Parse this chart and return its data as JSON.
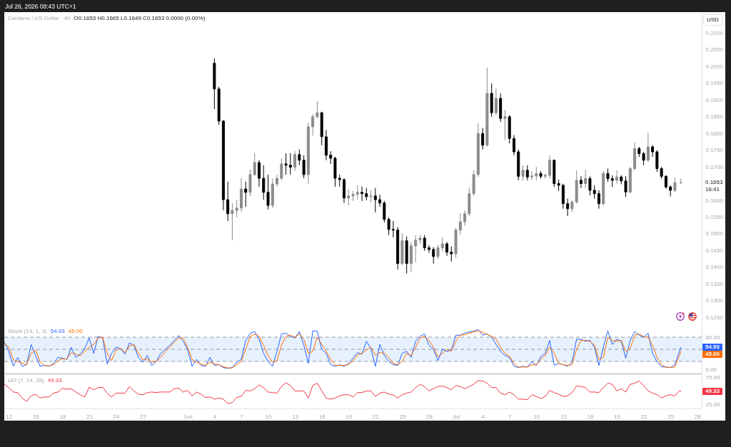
{
  "chart_data": [
    {
      "type": "candlestick",
      "title": "Cardano / US Dollar · 4h",
      "subtitle": "O0.1653 H0.1665 L0.1649 C0.1653 0.0000 (0.00%)",
      "ylabel": "USD",
      "x": [
        "2026-06-04",
        "2026-06-04T12:00",
        "2026-06-05",
        "2026-06-05T12:00",
        "2026-06-06",
        "2026-06-06T12:00",
        "2026-06-07",
        "2026-06-07T12:00",
        "2026-06-08",
        "2026-06-08T12:00",
        "2026-06-09",
        "2026-06-09T12:00",
        "2026-06-10",
        "2026-06-10T12:00",
        "2026-06-11",
        "2026-06-11T12:00",
        "2026-06-12",
        "2026-06-12T12:00",
        "2026-06-13",
        "2026-06-13T12:00",
        "2026-06-14",
        "2026-06-14T12:00",
        "2026-06-15",
        "2026-06-15T12:00",
        "2026-06-16",
        "2026-06-16T12:00",
        "2026-06-17",
        "2026-06-17T12:00",
        "2026-06-18",
        "2026-06-18T12:00",
        "2026-06-19",
        "2026-06-19T12:00",
        "2026-06-20",
        "2026-06-20T12:00",
        "2026-06-21",
        "2026-06-21T12:00",
        "2026-06-22",
        "2026-06-22T12:00",
        "2026-06-23",
        "2026-06-23T12:00",
        "2026-06-24",
        "2026-06-24T12:00",
        "2026-06-25",
        "2026-06-25T12:00",
        "2026-06-26",
        "2026-06-26T12:00",
        "2026-06-27",
        "2026-06-27T12:00",
        "2026-06-28",
        "2026-06-28T12:00",
        "2026-06-29",
        "2026-06-29T12:00",
        "2026-06-30",
        "2026-06-30T12:00",
        "2026-07-01",
        "2026-07-01T12:00",
        "2026-07-02",
        "2026-07-02T12:00",
        "2026-07-03",
        "2026-07-03T12:00",
        "2026-07-04",
        "2026-07-04T12:00",
        "2026-07-05",
        "2026-07-05T12:00",
        "2026-07-06",
        "2026-07-06T12:00",
        "2026-07-07",
        "2026-07-07T12:00",
        "2026-07-08",
        "2026-07-08T12:00",
        "2026-07-09",
        "2026-07-09T12:00",
        "2026-07-10",
        "2026-07-10T12:00",
        "2026-07-11",
        "2026-07-11T12:00",
        "2026-07-12",
        "2026-07-12T12:00",
        "2026-07-13",
        "2026-07-13T12:00",
        "2026-07-14",
        "2026-07-14T12:00",
        "2026-07-15",
        "2026-07-15T12:00",
        "2026-07-16",
        "2026-07-16T12:00",
        "2026-07-17",
        "2026-07-17T12:00",
        "2026-07-18",
        "2026-07-18T12:00",
        "2026-07-19",
        "2026-07-19T12:00",
        "2026-07-20",
        "2026-07-20T12:00",
        "2026-07-21",
        "2026-07-21T12:00",
        "2026-07-22",
        "2026-07-22T12:00",
        "2026-07-23",
        "2026-07-23T12:00",
        "2026-07-24",
        "2026-07-24T12:00",
        "2026-07-25",
        "2026-07-25T12:00",
        "2026-07-26T04:00"
      ],
      "ohlc": [
        [
          0.201,
          0.2025,
          0.1873,
          0.1933
        ],
        [
          0.1933,
          0.194,
          0.1826,
          0.1837
        ],
        [
          0.1837,
          0.184,
          0.157,
          0.1602
        ],
        [
          0.1602,
          0.1656,
          0.1538,
          0.156
        ],
        [
          0.156,
          0.1592,
          0.1481,
          0.157
        ],
        [
          0.157,
          0.1602,
          0.1549,
          0.1577
        ],
        [
          0.1577,
          0.1666,
          0.1566,
          0.1634
        ],
        [
          0.1634,
          0.1656,
          0.1581,
          0.1624
        ],
        [
          0.1624,
          0.1692,
          0.1613,
          0.1677
        ],
        [
          0.1677,
          0.1741,
          0.1673,
          0.1713
        ],
        [
          0.1713,
          0.172,
          0.1641,
          0.1666
        ],
        [
          0.1666,
          0.1705,
          0.1602,
          0.1624
        ],
        [
          0.1624,
          0.1677,
          0.1573,
          0.1585
        ],
        [
          0.1585,
          0.1666,
          0.1577,
          0.1649
        ],
        [
          0.1649,
          0.1677,
          0.1641,
          0.1666
        ],
        [
          0.1666,
          0.1726,
          0.166,
          0.1709
        ],
        [
          0.1709,
          0.1741,
          0.1677,
          0.1705
        ],
        [
          0.1705,
          0.1741,
          0.1677,
          0.1699
        ],
        [
          0.1699,
          0.1747,
          0.1688,
          0.1737
        ],
        [
          0.1737,
          0.1752,
          0.1705,
          0.172
        ],
        [
          0.172,
          0.1735,
          0.1666,
          0.1677
        ],
        [
          0.1677,
          0.1832,
          0.1649,
          0.182
        ],
        [
          0.182,
          0.1858,
          0.1794,
          0.185
        ],
        [
          0.185,
          0.1897,
          0.1845,
          0.1862
        ],
        [
          0.1862,
          0.1865,
          0.1765,
          0.179
        ],
        [
          0.179,
          0.1811,
          0.172,
          0.1735
        ],
        [
          0.1735,
          0.1747,
          0.1709,
          0.1726
        ],
        [
          0.1726,
          0.173,
          0.1641,
          0.1666
        ],
        [
          0.1666,
          0.1677,
          0.1641,
          0.1662
        ],
        [
          0.1662,
          0.1666,
          0.1592,
          0.1607
        ],
        [
          0.1607,
          0.1634,
          0.1585,
          0.1613
        ],
        [
          0.1613,
          0.1628,
          0.1598,
          0.1618
        ],
        [
          0.1618,
          0.1645,
          0.1602,
          0.1624
        ],
        [
          0.1624,
          0.1641,
          0.1598,
          0.162
        ],
        [
          0.162,
          0.1637,
          0.16,
          0.1611
        ],
        [
          0.1611,
          0.163,
          0.1594,
          0.1613
        ],
        [
          0.1613,
          0.1637,
          0.1564,
          0.1602
        ],
        [
          0.1602,
          0.1617,
          0.1581,
          0.1592
        ],
        [
          0.1592,
          0.1598,
          0.1534,
          0.1543
        ],
        [
          0.1543,
          0.1549,
          0.1496,
          0.1513
        ],
        [
          0.1513,
          0.1538,
          0.1489,
          0.1511
        ],
        [
          0.1511,
          0.152,
          0.1393,
          0.1411
        ],
        [
          0.1411,
          0.1502,
          0.1406,
          0.1479
        ],
        [
          0.1479,
          0.1492,
          0.1381,
          0.1411
        ],
        [
          0.1411,
          0.1475,
          0.1385,
          0.1464
        ],
        [
          0.1464,
          0.1496,
          0.1415,
          0.1481
        ],
        [
          0.1481,
          0.1496,
          0.147,
          0.1487
        ],
        [
          0.1487,
          0.1496,
          0.1449,
          0.1458
        ],
        [
          0.1458,
          0.1466,
          0.1443,
          0.1453
        ],
        [
          0.1453,
          0.146,
          0.1411,
          0.1432
        ],
        [
          0.1432,
          0.1466,
          0.1425,
          0.1458
        ],
        [
          0.1458,
          0.149,
          0.1447,
          0.147
        ],
        [
          0.147,
          0.1475,
          0.1434,
          0.1445
        ],
        [
          0.1445,
          0.1462,
          0.1417,
          0.144
        ],
        [
          0.144,
          0.1517,
          0.1428,
          0.1511
        ],
        [
          0.1511,
          0.1562,
          0.1498,
          0.1536
        ],
        [
          0.1536,
          0.157,
          0.1524,
          0.156
        ],
        [
          0.156,
          0.1637,
          0.1553,
          0.162
        ],
        [
          0.162,
          0.169,
          0.1613,
          0.1677
        ],
        [
          0.1677,
          0.183,
          0.167,
          0.18
        ],
        [
          0.18,
          0.1817,
          0.1752,
          0.1765
        ],
        [
          0.1765,
          0.1997,
          0.176,
          0.192
        ],
        [
          0.192,
          0.195,
          0.185,
          0.1862
        ],
        [
          0.1862,
          0.1935,
          0.1855,
          0.1905
        ],
        [
          0.1905,
          0.192,
          0.1835,
          0.1845
        ],
        [
          0.1845,
          0.187,
          0.178,
          0.185
        ],
        [
          0.185,
          0.1855,
          0.177,
          0.1785
        ],
        [
          0.1785,
          0.1795,
          0.1735,
          0.1745
        ],
        [
          0.1745,
          0.1752,
          0.166,
          0.1672
        ],
        [
          0.1672,
          0.1705,
          0.166,
          0.169
        ],
        [
          0.169,
          0.1705,
          0.166,
          0.167
        ],
        [
          0.167,
          0.1688,
          0.166,
          0.1673
        ],
        [
          0.1673,
          0.17,
          0.166,
          0.168
        ],
        [
          0.168,
          0.1688,
          0.1665,
          0.1672
        ],
        [
          0.1672,
          0.168,
          0.1665,
          0.1675
        ],
        [
          0.1675,
          0.1735,
          0.1665,
          0.172
        ],
        [
          0.172,
          0.1722,
          0.164,
          0.165
        ],
        [
          0.165,
          0.1662,
          0.1628,
          0.1645
        ],
        [
          0.1645,
          0.165,
          0.1575,
          0.159
        ],
        [
          0.159,
          0.1605,
          0.1553,
          0.1575
        ],
        [
          0.1575,
          0.16,
          0.1565,
          0.1595
        ],
        [
          0.1595,
          0.169,
          0.159,
          0.166
        ],
        [
          0.166,
          0.1672,
          0.1637,
          0.165
        ],
        [
          0.165,
          0.1692,
          0.1637,
          0.1665
        ],
        [
          0.1665,
          0.1672,
          0.1615,
          0.163
        ],
        [
          0.163,
          0.1645,
          0.1605,
          0.162
        ],
        [
          0.162,
          0.163,
          0.1575,
          0.159
        ],
        [
          0.159,
          0.1688,
          0.1585,
          0.168
        ],
        [
          0.168,
          0.1695,
          0.1655,
          0.1665
        ],
        [
          0.1665,
          0.1675,
          0.164,
          0.166
        ],
        [
          0.166,
          0.169,
          0.165,
          0.167
        ],
        [
          0.167,
          0.1675,
          0.1648,
          0.1658
        ],
        [
          0.1658,
          0.1672,
          0.161,
          0.1625
        ],
        [
          0.1625,
          0.17,
          0.162,
          0.1695
        ],
        [
          0.1695,
          0.1773,
          0.169,
          0.1755
        ],
        [
          0.1755,
          0.176,
          0.173,
          0.174
        ],
        [
          0.174,
          0.1745,
          0.1705,
          0.172
        ],
        [
          0.172,
          0.1802,
          0.1715,
          0.176
        ],
        [
          0.176,
          0.1765,
          0.173,
          0.1745
        ],
        [
          0.1745,
          0.175,
          0.1685,
          0.1695
        ],
        [
          0.1695,
          0.17,
          0.1665,
          0.1672
        ],
        [
          0.1672,
          0.1675,
          0.1635,
          0.164
        ],
        [
          0.164,
          0.1645,
          0.1612,
          0.163
        ],
        [
          0.163,
          0.1668,
          0.1625,
          0.1653
        ],
        [
          0.1653,
          0.1665,
          0.1649,
          0.1653
        ]
      ],
      "colors": [
        "#000000",
        "#000000",
        "#000000",
        "#000000",
        "#8c8c8c",
        "#8c8c8c",
        "#8c8c8c",
        "#000000",
        "#8c8c8c",
        "#8c8c8c",
        "#000000",
        "#000000",
        "#000000",
        "#8c8c8c",
        "#8c8c8c",
        "#8c8c8c",
        "#000000",
        "#000000",
        "#8c8c8c",
        "#000000",
        "#000000",
        "#8c8c8c",
        "#8c8c8c",
        "#8c8c8c",
        "#000000",
        "#000000",
        "#000000",
        "#000000",
        "#000000",
        "#000000",
        "#8c8c8c",
        "#8c8c8c",
        "#8c8c8c",
        "#000000",
        "#000000",
        "#8c8c8c",
        "#000000",
        "#000000",
        "#000000",
        "#000000",
        "#000000",
        "#000000",
        "#8c8c8c",
        "#000000",
        "#8c8c8c",
        "#8c8c8c",
        "#8c8c8c",
        "#000000",
        "#000000",
        "#000000",
        "#8c8c8c",
        "#8c8c8c",
        "#000000",
        "#000000",
        "#8c8c8c",
        "#8c8c8c",
        "#8c8c8c",
        "#8c8c8c",
        "#8c8c8c",
        "#8c8c8c",
        "#000000",
        "#8c8c8c",
        "#000000",
        "#8c8c8c",
        "#000000",
        "#8c8c8c",
        "#000000",
        "#000000",
        "#000000",
        "#8c8c8c",
        "#000000",
        "#8c8c8c",
        "#8c8c8c",
        "#000000",
        "#8c8c8c",
        "#8c8c8c",
        "#000000",
        "#000000",
        "#000000",
        "#000000",
        "#8c8c8c",
        "#8c8c8c",
        "#000000",
        "#8c8c8c",
        "#000000",
        "#000000",
        "#000000",
        "#8c8c8c",
        "#000000",
        "#000000",
        "#8c8c8c",
        "#000000",
        "#000000",
        "#8c8c8c",
        "#8c8c8c",
        "#000000",
        "#000000",
        "#8c8c8c",
        "#000000",
        "#000000",
        "#000000",
        "#000000",
        "#000000",
        "#8c8c8c",
        "#8c8c8c"
      ],
      "xlim": [
        "2026-05-11T12:00",
        "2026-07-28T12:00"
      ],
      "ylim": [
        0.1229,
        0.2163
      ],
      "yticks": [
        {
          "value": 0.125,
          "label": "0.1250"
        },
        {
          "value": 0.13,
          "label": "0.1300"
        },
        {
          "value": 0.135,
          "label": "0.1350"
        },
        {
          "value": 0.14,
          "label": "0.1400"
        },
        {
          "value": 0.145,
          "label": "0.1450"
        },
        {
          "value": 0.15,
          "label": "0.1500"
        },
        {
          "value": 0.155,
          "label": "0.1550"
        },
        {
          "value": 0.16,
          "label": "0.1600"
        },
        {
          "value": 0.17,
          "label": "0.1700"
        },
        {
          "value": 0.175,
          "label": "0.1750"
        },
        {
          "value": 0.18,
          "label": "0.1800"
        },
        {
          "value": 0.185,
          "label": "0.1850"
        },
        {
          "value": 0.19,
          "label": "0.1900"
        },
        {
          "value": 0.195,
          "label": "0.1950"
        },
        {
          "value": 0.2,
          "label": "0.2000"
        },
        {
          "value": 0.205,
          "label": "0.2050"
        },
        {
          "value": 0.21,
          "label": "0.2100"
        }
      ],
      "tick_labels": "y",
      "annotations": [
        "Jul 26, 2026 08:43 UTC+1",
        "0.1653",
        "16:41"
      ]
    },
    {
      "type": "line",
      "title": "Stoch (14, 1, 3)",
      "x": [
        "2026-05-11T12:00",
        "2026-05-12",
        "2026-05-12T12:00",
        "2026-05-13",
        "2026-05-13T12:00",
        "2026-05-14",
        "2026-05-14T12:00",
        "2026-05-15",
        "2026-05-15T12:00",
        "2026-05-16",
        "2026-05-16T12:00",
        "2026-05-17",
        "2026-05-17T12:00",
        "2026-05-18",
        "2026-05-18T12:00",
        "2026-05-19",
        "2026-05-19T12:00",
        "2026-05-20",
        "2026-05-20T12:00",
        "2026-05-21",
        "2026-05-21T12:00",
        "2026-05-22",
        "2026-05-22T12:00",
        "2026-05-23",
        "2026-05-23T12:00",
        "2026-05-24",
        "2026-05-24T12:00",
        "2026-05-25",
        "2026-05-25T12:00",
        "2026-05-26",
        "2026-05-26T12:00",
        "2026-05-27",
        "2026-05-27T12:00",
        "2026-05-28",
        "2026-05-28T12:00",
        "2026-05-29",
        "2026-05-29T12:00",
        "2026-05-30",
        "2026-05-30T12:00",
        "2026-05-31",
        "2026-05-31T12:00",
        "2026-06-01",
        "2026-06-01T12:00",
        "2026-06-02",
        "2026-06-02T12:00",
        "2026-06-03",
        "2026-06-03T12:00",
        "2026-06-04",
        "2026-06-04T12:00",
        "2026-06-05",
        "2026-06-05T12:00",
        "2026-06-06",
        "2026-06-06T12:00",
        "2026-06-07",
        "2026-06-07T12:00",
        "2026-06-08",
        "2026-06-08T12:00",
        "2026-06-09",
        "2026-06-09T12:00",
        "2026-06-10",
        "2026-06-10T12:00",
        "2026-06-11",
        "2026-06-11T12:00",
        "2026-06-12",
        "2026-06-12T12:00",
        "2026-06-13",
        "2026-06-13T12:00",
        "2026-06-14",
        "2026-06-14T12:00",
        "2026-06-15",
        "2026-06-15T12:00",
        "2026-06-16",
        "2026-06-16T12:00",
        "2026-06-17",
        "2026-06-17T12:00",
        "2026-06-18",
        "2026-06-18T12:00",
        "2026-06-19",
        "2026-06-19T12:00",
        "2026-06-20",
        "2026-06-20T12:00",
        "2026-06-21",
        "2026-06-21T12:00",
        "2026-06-22",
        "2026-06-22T12:00",
        "2026-06-23",
        "2026-06-23T12:00",
        "2026-06-24",
        "2026-06-24T12:00",
        "2026-06-25",
        "2026-06-25T12:00",
        "2026-06-26",
        "2026-06-26T12:00",
        "2026-06-27",
        "2026-06-27T12:00",
        "2026-06-28",
        "2026-06-28T12:00",
        "2026-06-29",
        "2026-06-29T12:00",
        "2026-06-30",
        "2026-06-30T12:00",
        "2026-07-01",
        "2026-07-01T12:00",
        "2026-07-02",
        "2026-07-02T12:00",
        "2026-07-03",
        "2026-07-03T12:00",
        "2026-07-04",
        "2026-07-04T12:00",
        "2026-07-05",
        "2026-07-05T12:00",
        "2026-07-06",
        "2026-07-06T12:00",
        "2026-07-07",
        "2026-07-07T12:00",
        "2026-07-08",
        "2026-07-08T12:00",
        "2026-07-09",
        "2026-07-09T12:00",
        "2026-07-10",
        "2026-07-10T12:00",
        "2026-07-11",
        "2026-07-11T12:00",
        "2026-07-12",
        "2026-07-12T12:00",
        "2026-07-13",
        "2026-07-13T12:00",
        "2026-07-14",
        "2026-07-14T12:00",
        "2026-07-15",
        "2026-07-15T12:00",
        "2026-07-16",
        "2026-07-16T12:00",
        "2026-07-17",
        "2026-07-17T12:00",
        "2026-07-18",
        "2026-07-18T12:00",
        "2026-07-19",
        "2026-07-19T12:00",
        "2026-07-20",
        "2026-07-20T12:00",
        "2026-07-21",
        "2026-07-21T12:00",
        "2026-07-22",
        "2026-07-22T12:00",
        "2026-07-23",
        "2026-07-23T12:00",
        "2026-07-24",
        "2026-07-24T12:00",
        "2026-07-25",
        "2026-07-25T12:00",
        "2026-07-26",
        "2026-07-26T04:00"
      ],
      "series": [
        {
          "color": "#2962ff",
          "values": [
            68,
            45,
            8,
            30,
            8,
            12,
            62,
            35,
            8,
            10,
            8,
            15,
            30,
            28,
            25,
            55,
            30,
            38,
            52,
            78,
            40,
            82,
            78,
            14,
            40,
            55,
            52,
            38,
            66,
            60,
            30,
            18,
            35,
            10,
            20,
            40,
            50,
            60,
            72,
            84,
            70,
            50,
            8,
            25,
            10,
            8,
            30,
            10,
            12,
            5,
            3,
            5,
            18,
            25,
            72,
            90,
            94,
            75,
            40,
            20,
            8,
            45,
            88,
            90,
            82,
            78,
            94,
            60,
            15,
            96,
            95,
            50,
            40,
            12,
            8,
            12,
            8,
            15,
            28,
            42,
            38,
            70,
            52,
            8,
            62,
            35,
            20,
            12,
            10,
            40,
            45,
            30,
            70,
            82,
            88,
            60,
            50,
            22,
            50,
            45,
            48,
            85,
            85,
            90,
            93,
            95,
            99,
            85,
            88,
            80,
            62,
            45,
            35,
            30,
            8,
            5,
            8,
            6,
            20,
            10,
            32,
            40,
            72,
            10,
            15,
            12,
            8,
            18,
            75,
            75,
            70,
            72,
            55,
            10,
            55,
            96,
            62,
            75,
            70,
            28,
            72,
            94,
            85,
            80,
            90,
            40,
            20,
            7,
            6,
            5,
            12,
            45,
            54.93
          ]
        },
        {
          "color": "#ff6d00",
          "values": [
            65,
            55,
            25,
            20,
            16,
            12,
            40,
            48,
            20,
            10,
            9,
            12,
            22,
            27,
            26,
            42,
            38,
            34,
            45,
            55,
            62,
            78,
            80,
            40,
            22,
            48,
            52,
            42,
            58,
            62,
            40,
            24,
            26,
            18,
            20,
            30,
            45,
            55,
            68,
            78,
            78,
            55,
            25,
            18,
            14,
            10,
            18,
            14,
            12,
            7,
            4,
            4,
            12,
            20,
            50,
            82,
            88,
            82,
            60,
            35,
            18,
            22,
            60,
            82,
            85,
            80,
            88,
            75,
            40,
            45,
            80,
            62,
            45,
            25,
            10,
            10,
            10,
            12,
            22,
            36,
            40,
            48,
            55,
            35,
            42,
            40,
            30,
            15,
            12,
            20,
            40,
            35,
            55,
            78,
            82,
            72,
            55,
            32,
            40,
            50,
            46,
            70,
            85,
            86,
            90,
            93,
            96,
            92,
            87,
            82,
            75,
            55,
            40,
            33,
            15,
            6,
            6,
            6,
            12,
            12,
            25,
            35,
            55,
            40,
            15,
            12,
            10,
            12,
            50,
            72,
            72,
            70,
            60,
            25,
            30,
            80,
            72,
            70,
            72,
            45,
            52,
            85,
            88,
            82,
            80,
            60,
            30,
            12,
            6,
            5,
            6,
            35,
            45.0
          ]
        }
      ],
      "xlim": [
        "2026-05-11T12:00",
        "2026-07-28T12:00"
      ],
      "ylim": [
        -10,
        110
      ],
      "yticks": [
        {
          "value": 80,
          "label": "80.00"
        },
        {
          "value": 0,
          "label": "0.00"
        }
      ],
      "tick_labels": "y",
      "bands": [
        {
          "axis": "y",
          "from": 20,
          "to": 80,
          "color": "#e6f1fd"
        }
      ],
      "ref_lines": [
        {
          "axis": "y",
          "value": 80,
          "color": "#9598a1",
          "line_style": "dashed"
        },
        {
          "axis": "y",
          "value": 50,
          "color": "#9598a1",
          "line_style": "dashed"
        },
        {
          "axis": "y",
          "value": 20,
          "color": "#9598a1",
          "line_style": "dashed"
        }
      ],
      "annotations": [
        "54.93",
        "45.00"
      ]
    },
    {
      "type": "line",
      "title": "UO (7, 14, 28)",
      "x": [
        "2026-05-11T12:00",
        "2026-05-12",
        "2026-05-12T12:00",
        "2026-05-13",
        "2026-05-13T12:00",
        "2026-05-14",
        "2026-05-14T12:00",
        "2026-05-15",
        "2026-05-15T12:00",
        "2026-05-16",
        "2026-05-16T12:00",
        "2026-05-17",
        "2026-05-17T12:00",
        "2026-05-18",
        "2026-05-18T12:00",
        "2026-05-19",
        "2026-05-19T12:00",
        "2026-05-20",
        "2026-05-20T12:00",
        "2026-05-21",
        "2026-05-21T12:00",
        "2026-05-22",
        "2026-05-22T12:00",
        "2026-05-23",
        "2026-05-23T12:00",
        "2026-05-24",
        "2026-05-24T12:00",
        "2026-05-25",
        "2026-05-25T12:00",
        "2026-05-26",
        "2026-05-26T12:00",
        "2026-05-27",
        "2026-05-27T12:00",
        "2026-05-28",
        "2026-05-28T12:00",
        "2026-05-29",
        "2026-05-29T12:00",
        "2026-05-30",
        "2026-05-30T12:00",
        "2026-05-31",
        "2026-05-31T12:00",
        "2026-06-01",
        "2026-06-01T12:00",
        "2026-06-02",
        "2026-06-02T12:00",
        "2026-06-03",
        "2026-06-03T12:00",
        "2026-06-04",
        "2026-06-04T12:00",
        "2026-06-05",
        "2026-06-05T12:00",
        "2026-06-06",
        "2026-06-06T12:00",
        "2026-06-07",
        "2026-06-07T12:00",
        "2026-06-08",
        "2026-06-08T12:00",
        "2026-06-09",
        "2026-06-09T12:00",
        "2026-06-10",
        "2026-06-10T12:00",
        "2026-06-11",
        "2026-06-11T12:00",
        "2026-06-12",
        "2026-06-12T12:00",
        "2026-06-13",
        "2026-06-13T12:00",
        "2026-06-14",
        "2026-06-14T12:00",
        "2026-06-15",
        "2026-06-15T12:00",
        "2026-06-16",
        "2026-06-16T12:00",
        "2026-06-17",
        "2026-06-17T12:00",
        "2026-06-18",
        "2026-06-18T12:00",
        "2026-06-19",
        "2026-06-19T12:00",
        "2026-06-20",
        "2026-06-20T12:00",
        "2026-06-21",
        "2026-06-21T12:00",
        "2026-06-22",
        "2026-06-22T12:00",
        "2026-06-23",
        "2026-06-23T12:00",
        "2026-06-24",
        "2026-06-24T12:00",
        "2026-06-25",
        "2026-06-25T12:00",
        "2026-06-26",
        "2026-06-26T12:00",
        "2026-06-27",
        "2026-06-27T12:00",
        "2026-06-28",
        "2026-06-28T12:00",
        "2026-06-29",
        "2026-06-29T12:00",
        "2026-06-30",
        "2026-06-30T12:00",
        "2026-07-01",
        "2026-07-01T12:00",
        "2026-07-02",
        "2026-07-02T12:00",
        "2026-07-03",
        "2026-07-03T12:00",
        "2026-07-04",
        "2026-07-04T12:00",
        "2026-07-05",
        "2026-07-05T12:00",
        "2026-07-06",
        "2026-07-06T12:00",
        "2026-07-07",
        "2026-07-07T12:00",
        "2026-07-08",
        "2026-07-08T12:00",
        "2026-07-09",
        "2026-07-09T12:00",
        "2026-07-10",
        "2026-07-10T12:00",
        "2026-07-11",
        "2026-07-11T12:00",
        "2026-07-12",
        "2026-07-12T12:00",
        "2026-07-13",
        "2026-07-13T12:00",
        "2026-07-14",
        "2026-07-14T12:00",
        "2026-07-15",
        "2026-07-15T12:00",
        "2026-07-16",
        "2026-07-16T12:00",
        "2026-07-17",
        "2026-07-17T12:00",
        "2026-07-18",
        "2026-07-18T12:00",
        "2026-07-19",
        "2026-07-19T12:00",
        "2026-07-20",
        "2026-07-20T12:00",
        "2026-07-21",
        "2026-07-21T12:00",
        "2026-07-22",
        "2026-07-22T12:00",
        "2026-07-23",
        "2026-07-23T12:00",
        "2026-07-24",
        "2026-07-24T12:00",
        "2026-07-25",
        "2026-07-25T12:00",
        "2026-07-26",
        "2026-07-26T04:00"
      ],
      "series": [
        {
          "color": "#f23645",
          "values": [
            62,
            56,
            48,
            47,
            37,
            31,
            41,
            44,
            37,
            39,
            39,
            46,
            48,
            55,
            53,
            54,
            48,
            43,
            39,
            57,
            52,
            56,
            57,
            46,
            39,
            46,
            46,
            46,
            58,
            50,
            44,
            43,
            47,
            48,
            47,
            48,
            48,
            48,
            54,
            55,
            48,
            51,
            41,
            48,
            44,
            38,
            39,
            35,
            37,
            35,
            27,
            29,
            38,
            40,
            51,
            50,
            54,
            61,
            56,
            48,
            47,
            46,
            58,
            65,
            60,
            50,
            50,
            50,
            37,
            60,
            64,
            50,
            37,
            35,
            37,
            41,
            43,
            43,
            39,
            47,
            47,
            50,
            50,
            40,
            46,
            48,
            44,
            43,
            37,
            43,
            46,
            48,
            56,
            62,
            58,
            50,
            54,
            58,
            59,
            56,
            52,
            60,
            58,
            54,
            58,
            62,
            69,
            68,
            64,
            56,
            56,
            46,
            43,
            48,
            43,
            35,
            35,
            34,
            43,
            40,
            36,
            40,
            51,
            47,
            44,
            40,
            41,
            47,
            59,
            58,
            56,
            48,
            48,
            47,
            56,
            64,
            62,
            50,
            54,
            48,
            62,
            64,
            68,
            60,
            50,
            46,
            43,
            37,
            41,
            43,
            41,
            50,
            49.33
          ]
        }
      ],
      "xlim": [
        "2026-05-11T12:00",
        "2026-07-28T12:00"
      ],
      "ylim": [
        18,
        79
      ],
      "yticks": [
        {
          "value": 75,
          "label": "75.00"
        },
        {
          "value": 25,
          "label": "25.00"
        }
      ],
      "xticks": [
        {
          "value": "2026-05-12",
          "label": "12"
        },
        {
          "value": "2026-05-15",
          "label": "15"
        },
        {
          "value": "2026-05-18",
          "label": "18"
        },
        {
          "value": "2026-05-21",
          "label": "21"
        },
        {
          "value": "2026-05-24",
          "label": "24"
        },
        {
          "value": "2026-05-27",
          "label": "27"
        },
        {
          "value": "2026-06-01",
          "label": "Jun"
        },
        {
          "value": "2026-06-04",
          "label": "4"
        },
        {
          "value": "2026-06-07",
          "label": "7"
        },
        {
          "value": "2026-06-10",
          "label": "10"
        },
        {
          "value": "2026-06-13",
          "label": "13"
        },
        {
          "value": "2026-06-16",
          "label": "16"
        },
        {
          "value": "2026-06-19",
          "label": "19"
        },
        {
          "value": "2026-06-22",
          "label": "22"
        },
        {
          "value": "2026-06-25",
          "label": "25"
        },
        {
          "value": "2026-06-28",
          "label": "28"
        },
        {
          "value": "2026-07-01",
          "label": "Jul"
        },
        {
          "value": "2026-07-04",
          "label": "4"
        },
        {
          "value": "2026-07-07",
          "label": "7"
        },
        {
          "value": "2026-07-10",
          "label": "10"
        },
        {
          "value": "2026-07-13",
          "label": "13"
        },
        {
          "value": "2026-07-16",
          "label": "16"
        },
        {
          "value": "2026-07-19",
          "label": "19"
        },
        {
          "value": "2026-07-22",
          "label": "22"
        },
        {
          "value": "2026-07-25",
          "label": "25"
        },
        {
          "value": "2026-07-28",
          "label": "28"
        }
      ],
      "annotations": [
        "49.33"
      ]
    }
  ]
}
